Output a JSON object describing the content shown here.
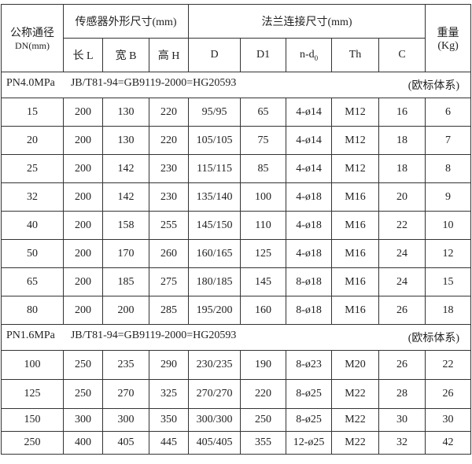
{
  "header": {
    "dn_label": "公称通径",
    "dn_unit": "DN(mm)",
    "sensor_group": "传感器外形尺寸(mm)",
    "flange_group": "法兰连接尺寸(mm)",
    "weight_label": "重量",
    "weight_unit": "(Kg)",
    "cols": [
      "长 L",
      "宽 B",
      "高 H",
      "D",
      "D1",
      "n-d",
      "Th",
      "C"
    ],
    "nd_subscript": "0"
  },
  "sections": [
    {
      "pressure": "PN4.0MPa",
      "standard": "JB/T81-94=GB9119-2000=HG20593",
      "system": "(欧标体系)",
      "rows": [
        [
          "15",
          "200",
          "130",
          "220",
          "95/95",
          "65",
          "4-ø14",
          "M12",
          "16",
          "6"
        ],
        [
          "20",
          "200",
          "130",
          "220",
          "105/105",
          "75",
          "4-ø14",
          "M12",
          "18",
          "7"
        ],
        [
          "25",
          "200",
          "142",
          "230",
          "115/115",
          "85",
          "4-ø14",
          "M12",
          "18",
          "8"
        ],
        [
          "32",
          "200",
          "142",
          "230",
          "135/140",
          "100",
          "4-ø18",
          "M16",
          "20",
          "9"
        ],
        [
          "40",
          "200",
          "158",
          "255",
          "145/150",
          "110",
          "4-ø18",
          "M16",
          "22",
          "10"
        ],
        [
          "50",
          "200",
          "170",
          "260",
          "160/165",
          "125",
          "4-ø18",
          "M16",
          "24",
          "12"
        ],
        [
          "65",
          "200",
          "185",
          "275",
          "180/185",
          "145",
          "8-ø18",
          "M16",
          "24",
          "15"
        ],
        [
          "80",
          "200",
          "200",
          "285",
          "195/200",
          "160",
          "8-ø18",
          "M16",
          "26",
          "18"
        ]
      ]
    },
    {
      "pressure": "PN1.6MPa",
      "standard": "JB/T81-94=GB9119-2000=HG20593",
      "system": "(欧标体系)",
      "rows": [
        [
          "100",
          "250",
          "235",
          "290",
          "230/235",
          "190",
          "8-ø23",
          "M20",
          "26",
          "22"
        ],
        [
          "125",
          "250",
          "270",
          "325",
          "270/270",
          "220",
          "8-ø25",
          "M22",
          "28",
          "26"
        ],
        [
          "150",
          "300",
          "300",
          "350",
          "300/300",
          "250",
          "8-ø25",
          "M22",
          "30",
          "30"
        ],
        [
          "250",
          "400",
          "405",
          "445",
          "405/405",
          "355",
          "12-ø25",
          "M22",
          "32",
          "42"
        ]
      ]
    }
  ]
}
